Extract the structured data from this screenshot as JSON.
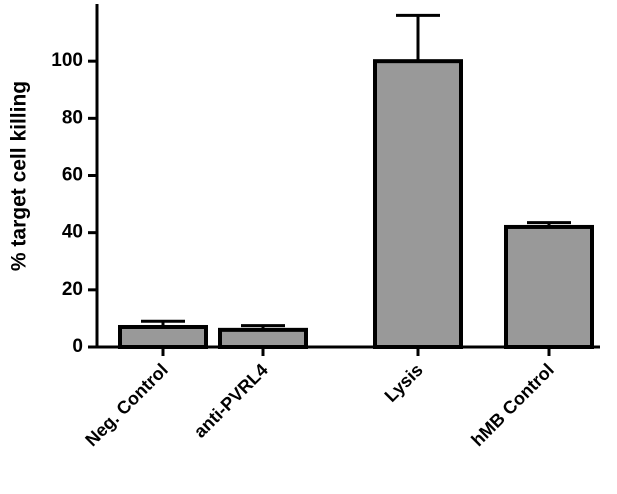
{
  "chart_data": {
    "type": "bar",
    "y_label": "% target cell killing",
    "categories": [
      "Neg. Control",
      "anti-PVRL4",
      "Lysis",
      "hMB Control"
    ],
    "values": [
      7,
      6,
      100,
      42
    ],
    "errors": [
      2,
      1.5,
      16,
      1.5
    ],
    "color": "#999999",
    "ylim": [
      0,
      120
    ],
    "yticks": [
      0,
      20,
      40,
      60,
      80,
      100
    ],
    "grid": false
  }
}
